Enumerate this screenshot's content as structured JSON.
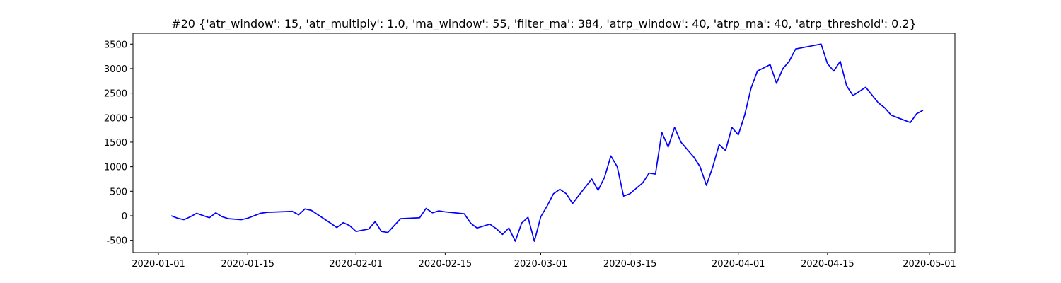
{
  "chart_data": {
    "type": "line",
    "title": "#20 {'atr_window': 15, 'atr_multiply': 1.0, 'ma_window': 55, 'filter_ma': 384, 'atrp_window': 40, 'atrp_ma': 40, 'atrp_threshold': 0.2}",
    "color": "#0000ff",
    "x": [
      "2020-01-03",
      "2020-01-04",
      "2020-01-05",
      "2020-01-06",
      "2020-01-07",
      "2020-01-09",
      "2020-01-10",
      "2020-01-11",
      "2020-01-12",
      "2020-01-14",
      "2020-01-15",
      "2020-01-17",
      "2020-01-18",
      "2020-01-22",
      "2020-01-23",
      "2020-01-24",
      "2020-01-25",
      "2020-01-28",
      "2020-01-29",
      "2020-01-30",
      "2020-01-31",
      "2020-02-01",
      "2020-02-03",
      "2020-02-04",
      "2020-02-05",
      "2020-02-06",
      "2020-02-07",
      "2020-02-08",
      "2020-02-11",
      "2020-02-12",
      "2020-02-13",
      "2020-02-14",
      "2020-02-15",
      "2020-02-18",
      "2020-02-19",
      "2020-02-20",
      "2020-02-22",
      "2020-02-23",
      "2020-02-24",
      "2020-02-25",
      "2020-02-26",
      "2020-02-27",
      "2020-02-28",
      "2020-02-29",
      "2020-03-01",
      "2020-03-02",
      "2020-03-03",
      "2020-03-04",
      "2020-03-05",
      "2020-03-06",
      "2020-03-07",
      "2020-03-09",
      "2020-03-10",
      "2020-03-11",
      "2020-03-12",
      "2020-03-13",
      "2020-03-14",
      "2020-03-15",
      "2020-03-17",
      "2020-03-18",
      "2020-03-19",
      "2020-03-20",
      "2020-03-21",
      "2020-03-22",
      "2020-03-23",
      "2020-03-25",
      "2020-03-26",
      "2020-03-27",
      "2020-03-28",
      "2020-03-29",
      "2020-03-30",
      "2020-03-31",
      "2020-04-01",
      "2020-04-02",
      "2020-04-03",
      "2020-04-04",
      "2020-04-06",
      "2020-04-07",
      "2020-04-08",
      "2020-04-09",
      "2020-04-10",
      "2020-04-14",
      "2020-04-15",
      "2020-04-16",
      "2020-04-17",
      "2020-04-18",
      "2020-04-19",
      "2020-04-21",
      "2020-04-23",
      "2020-04-24",
      "2020-04-25",
      "2020-04-28",
      "2020-04-29",
      "2020-04-30"
    ],
    "values": [
      0,
      -50,
      -80,
      -20,
      50,
      -40,
      60,
      -20,
      -60,
      -80,
      -50,
      50,
      70,
      90,
      20,
      140,
      110,
      -150,
      -240,
      -140,
      -200,
      -320,
      -270,
      -120,
      -320,
      -340,
      -200,
      -60,
      -40,
      150,
      60,
      100,
      80,
      40,
      -150,
      -250,
      -170,
      -260,
      -380,
      -250,
      -520,
      -150,
      -30,
      -520,
      -20,
      200,
      450,
      540,
      450,
      250,
      420,
      750,
      520,
      780,
      1220,
      1000,
      400,
      450,
      670,
      870,
      850,
      1700,
      1400,
      1800,
      1500,
      1200,
      1000,
      620,
      1000,
      1450,
      1330,
      1800,
      1650,
      2050,
      2600,
      2950,
      3080,
      2700,
      3000,
      3150,
      3400,
      3500,
      3100,
      2950,
      3150,
      2650,
      2450,
      2620,
      2300,
      2200,
      2050,
      1900,
      2080,
      2150
    ],
    "xlim": [
      "2019-12-28",
      "2020-05-05"
    ],
    "xticks": [
      "2020-01-01",
      "2020-01-15",
      "2020-02-01",
      "2020-02-15",
      "2020-03-01",
      "2020-03-15",
      "2020-04-01",
      "2020-04-15",
      "2020-05-01"
    ],
    "ylim": [
      -750,
      3720
    ],
    "yticks": [
      -500,
      0,
      500,
      1000,
      1500,
      2000,
      2500,
      3000,
      3500
    ]
  }
}
